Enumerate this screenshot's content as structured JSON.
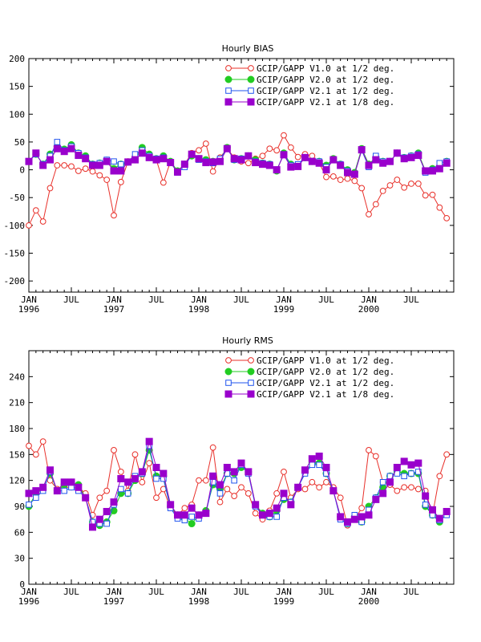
{
  "chart_data": [
    {
      "type": "line",
      "title": "Hourly BIAS",
      "xlabel": "",
      "ylabel": "",
      "xlim": [
        0,
        60
      ],
      "ylim": [
        -220,
        200
      ],
      "yticks": [
        -200,
        -150,
        -100,
        -50,
        0,
        50,
        100,
        150,
        200
      ],
      "xtick_labels": [
        {
          "month": "JAN",
          "year": "1996"
        },
        {
          "month": "JUL",
          "year": ""
        },
        {
          "month": "JAN",
          "year": "1997"
        },
        {
          "month": "JUL",
          "year": ""
        },
        {
          "month": "JAN",
          "year": "1998"
        },
        {
          "month": "JUL",
          "year": ""
        },
        {
          "month": "JAN",
          "year": "1999"
        },
        {
          "month": "JUL",
          "year": ""
        },
        {
          "month": "JAN",
          "year": "2000"
        },
        {
          "month": "JUL",
          "year": ""
        }
      ],
      "xtick_months": [
        0,
        6,
        12,
        18,
        24,
        30,
        36,
        42,
        48,
        54
      ],
      "grid": false,
      "legend_position": "top-right",
      "series": [
        {
          "name": "GCIP/GAPP V1.0 at 1/2 deg.",
          "color": "#e8302a",
          "marker": "open-circle",
          "values": [
            -100,
            -73,
            -93,
            -33,
            8,
            8,
            6,
            -2,
            2,
            -3,
            -10,
            -18,
            -82,
            -22,
            15,
            25,
            38,
            23,
            18,
            -23,
            15,
            -4,
            10,
            30,
            35,
            47,
            -3,
            22,
            38,
            22,
            15,
            12,
            20,
            25,
            38,
            35,
            62,
            40,
            23,
            28,
            25,
            12,
            -13,
            -12,
            -18,
            -16,
            -20,
            -33,
            -80,
            -62,
            -38,
            -28,
            -18,
            -32,
            -25,
            -25,
            -46,
            -45,
            -68,
            -87
          ]
        },
        {
          "name": "GCIP/GAPP V2.0 at 1/2 deg.",
          "color": "#22cc22",
          "marker": "filled-circle",
          "values": [
            15,
            28,
            10,
            28,
            42,
            37,
            45,
            30,
            25,
            10,
            12,
            17,
            2,
            10,
            14,
            18,
            40,
            28,
            20,
            25,
            15,
            -2,
            10,
            25,
            20,
            18,
            15,
            18,
            40,
            18,
            20,
            25,
            18,
            12,
            10,
            -2,
            30,
            10,
            8,
            22,
            15,
            15,
            8,
            20,
            10,
            0,
            -5,
            38,
            10,
            22,
            15,
            15,
            30,
            22,
            25,
            30,
            -2,
            2,
            5,
            15
          ]
        },
        {
          "name": "GCIP/GAPP V2.1 at 1/2 deg.",
          "color": "#2255ee",
          "marker": "open-square",
          "values": [
            15,
            28,
            10,
            25,
            50,
            35,
            42,
            30,
            22,
            10,
            12,
            18,
            15,
            10,
            14,
            28,
            35,
            25,
            20,
            22,
            13,
            -5,
            5,
            28,
            18,
            15,
            12,
            20,
            38,
            18,
            20,
            25,
            15,
            12,
            10,
            0,
            28,
            8,
            10,
            22,
            15,
            15,
            5,
            18,
            10,
            -2,
            -8,
            35,
            5,
            25,
            15,
            15,
            30,
            22,
            25,
            28,
            -5,
            0,
            12,
            15
          ]
        },
        {
          "name": "GCIP/GAPP V2.1 at 1/8 deg.",
          "color": "#9900cc",
          "marker": "filled-square",
          "values": [
            15,
            30,
            8,
            18,
            38,
            33,
            38,
            26,
            20,
            8,
            8,
            15,
            -2,
            -2,
            14,
            18,
            30,
            22,
            18,
            20,
            13,
            -4,
            10,
            28,
            20,
            13,
            14,
            15,
            38,
            20,
            18,
            25,
            13,
            10,
            8,
            0,
            27,
            5,
            6,
            22,
            15,
            12,
            0,
            18,
            8,
            -5,
            -8,
            36,
            8,
            18,
            12,
            15,
            30,
            20,
            22,
            26,
            -2,
            -2,
            2,
            12
          ]
        }
      ]
    },
    {
      "type": "line",
      "title": "Hourly RMS",
      "xlabel": "",
      "ylabel": "",
      "xlim": [
        0,
        60
      ],
      "ylim": [
        0,
        270
      ],
      "yticks": [
        0,
        30,
        60,
        90,
        120,
        150,
        180,
        210,
        240
      ],
      "xtick_labels": [
        {
          "month": "JAN",
          "year": "1996"
        },
        {
          "month": "JUL",
          "year": ""
        },
        {
          "month": "JAN",
          "year": "1997"
        },
        {
          "month": "JUL",
          "year": ""
        },
        {
          "month": "JAN",
          "year": "1998"
        },
        {
          "month": "JUL",
          "year": ""
        },
        {
          "month": "JAN",
          "year": "1999"
        },
        {
          "month": "JUL",
          "year": ""
        },
        {
          "month": "JAN",
          "year": "2000"
        },
        {
          "month": "JUL",
          "year": ""
        }
      ],
      "xtick_months": [
        0,
        6,
        12,
        18,
        24,
        30,
        36,
        42,
        48,
        54
      ],
      "grid": false,
      "legend_position": "top-right",
      "series": [
        {
          "name": "GCIP/GAPP V1.0 at 1/2 deg.",
          "color": "#e8302a",
          "marker": "open-circle",
          "values": [
            160,
            150,
            165,
            120,
            110,
            112,
            112,
            112,
            105,
            80,
            100,
            108,
            155,
            130,
            108,
            150,
            118,
            140,
            100,
            110,
            88,
            80,
            88,
            92,
            120,
            120,
            158,
            95,
            110,
            102,
            112,
            105,
            82,
            75,
            85,
            105,
            130,
            100,
            110,
            110,
            118,
            112,
            118,
            112,
            100,
            68,
            75,
            88,
            155,
            148,
            118,
            115,
            108,
            112,
            112,
            110,
            108,
            80,
            125,
            150
          ]
        },
        {
          "name": "GCIP/GAPP V2.0 at 1/2 deg.",
          "color": "#22cc22",
          "marker": "filled-circle",
          "values": [
            90,
            105,
            110,
            128,
            108,
            115,
            118,
            115,
            100,
            72,
            68,
            72,
            85,
            105,
            105,
            120,
            128,
            155,
            125,
            125,
            90,
            80,
            76,
            70,
            80,
            85,
            115,
            110,
            128,
            128,
            135,
            130,
            92,
            82,
            78,
            85,
            98,
            95,
            112,
            130,
            140,
            140,
            128,
            108,
            78,
            70,
            78,
            72,
            90,
            100,
            112,
            125,
            130,
            128,
            128,
            128,
            90,
            80,
            72,
            82
          ]
        },
        {
          "name": "GCIP/GAPP V2.1 at 1/2 deg.",
          "color": "#2255ee",
          "marker": "open-square",
          "values": [
            92,
            100,
            108,
            130,
            108,
            108,
            112,
            108,
            100,
            72,
            70,
            70,
            92,
            110,
            105,
            125,
            128,
            160,
            122,
            122,
            88,
            76,
            74,
            78,
            76,
            82,
            118,
            105,
            128,
            120,
            138,
            128,
            90,
            80,
            78,
            78,
            100,
            95,
            112,
            128,
            138,
            138,
            128,
            108,
            75,
            70,
            80,
            72,
            86,
            100,
            118,
            125,
            128,
            125,
            128,
            130,
            92,
            80,
            74,
            80
          ]
        },
        {
          "name": "GCIP/GAPP V2.1 at 1/8 deg.",
          "color": "#9900cc",
          "marker": "filled-square",
          "values": [
            105,
            108,
            112,
            132,
            108,
            118,
            118,
            112,
            100,
            66,
            75,
            84,
            95,
            122,
            118,
            122,
            130,
            165,
            135,
            128,
            92,
            80,
            80,
            88,
            80,
            82,
            125,
            115,
            135,
            130,
            140,
            130,
            92,
            80,
            82,
            88,
            105,
            92,
            112,
            132,
            145,
            148,
            135,
            108,
            78,
            72,
            75,
            78,
            80,
            98,
            105,
            118,
            135,
            142,
            138,
            140,
            102,
            86,
            76,
            84
          ]
        }
      ]
    }
  ]
}
